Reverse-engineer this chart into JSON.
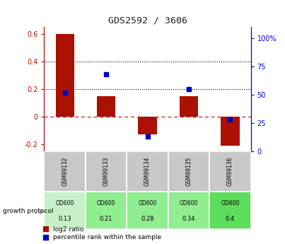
{
  "title": "GDS2592 / 3606",
  "samples": [
    "GSM99132",
    "GSM99133",
    "GSM99134",
    "GSM99135",
    "GSM99136"
  ],
  "log2_ratio": [
    0.6,
    0.15,
    -0.13,
    0.15,
    -0.21
  ],
  "percentile_rank_pct": [
    52,
    68,
    13,
    55,
    28
  ],
  "od600_values": [
    "0.13",
    "0.21",
    "0.28",
    "0.34",
    "0.4"
  ],
  "od600_bg_colors": [
    "#c8f0c8",
    "#90ee90",
    "#90ee90",
    "#90ee90",
    "#5cdd5c"
  ],
  "bar_color": "#aa1100",
  "dot_color": "#0000cc",
  "ylim_left": [
    -0.25,
    0.65
  ],
  "ylim_right": [
    0,
    110
  ],
  "yticks_left": [
    -0.2,
    0.0,
    0.2,
    0.4,
    0.6
  ],
  "yticks_right": [
    0,
    25,
    50,
    75,
    100
  ],
  "ytick_labels_right": [
    "0",
    "25",
    "50",
    "75",
    "100%"
  ],
  "hline_color": "#cc2200",
  "dotted_line_color": "#000000",
  "growth_protocol_label": "growth protocol",
  "legend_bar_label": "log2 ratio",
  "legend_dot_label": "percentile rank within the sample",
  "background_color": "#ffffff",
  "plot_bg_color": "#ffffff",
  "header_bg_color": "#c8c8c8"
}
